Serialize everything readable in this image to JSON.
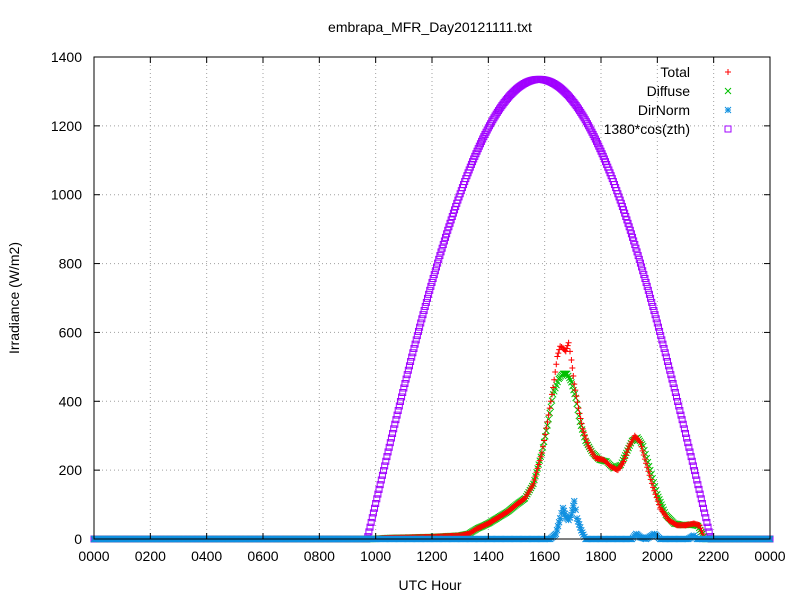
{
  "chart_data": {
    "type": "scatter",
    "title": "embrapa_MFR_Day20121111.txt",
    "xlabel": "UTC Hour",
    "ylabel": "Irradiance (W/m2)",
    "xlim": [
      0,
      24
    ],
    "ylim": [
      0,
      1400
    ],
    "x_ticks": [
      "0000",
      "0200",
      "0400",
      "0600",
      "0800",
      "1000",
      "1200",
      "1400",
      "1600",
      "1800",
      "2000",
      "2200",
      "0000"
    ],
    "y_ticks": [
      "0",
      "200",
      "400",
      "600",
      "800",
      "1000",
      "1200",
      "1400"
    ],
    "grid": true,
    "legend_position": "top-right",
    "series": [
      {
        "name": "Total",
        "marker": "plus",
        "color": "#ff0000",
        "points": [
          [
            0,
            0
          ],
          [
            9.7,
            0
          ],
          [
            9.9,
            0
          ],
          [
            10.4,
            3
          ],
          [
            11,
            4
          ],
          [
            11.5,
            5
          ],
          [
            12,
            6
          ],
          [
            12.5,
            8
          ],
          [
            13,
            10
          ],
          [
            13.3,
            15
          ],
          [
            13.6,
            30
          ],
          [
            14,
            45
          ],
          [
            14.3,
            60
          ],
          [
            14.7,
            80
          ],
          [
            15,
            100
          ],
          [
            15.3,
            118
          ],
          [
            15.6,
            160
          ],
          [
            15.9,
            250
          ],
          [
            16.1,
            340
          ],
          [
            16.3,
            440
          ],
          [
            16.45,
            530
          ],
          [
            16.55,
            560
          ],
          [
            16.65,
            555
          ],
          [
            16.75,
            545
          ],
          [
            16.85,
            570
          ],
          [
            16.95,
            520
          ],
          [
            17.05,
            450
          ],
          [
            17.2,
            380
          ],
          [
            17.35,
            320
          ],
          [
            17.55,
            270
          ],
          [
            17.8,
            235
          ],
          [
            18.1,
            230
          ],
          [
            18.35,
            210
          ],
          [
            18.6,
            200
          ],
          [
            18.8,
            225
          ],
          [
            19,
            270
          ],
          [
            19.2,
            300
          ],
          [
            19.4,
            280
          ],
          [
            19.6,
            220
          ],
          [
            19.85,
            150
          ],
          [
            20.1,
            90
          ],
          [
            20.4,
            55
          ],
          [
            20.7,
            40
          ],
          [
            21,
            40
          ],
          [
            21.3,
            45
          ],
          [
            21.5,
            40
          ],
          [
            21.6,
            15
          ],
          [
            21.7,
            0
          ],
          [
            24,
            0
          ]
        ]
      },
      {
        "name": "Diffuse",
        "marker": "cross",
        "color": "#00c000",
        "points": [
          [
            0,
            0
          ],
          [
            9.7,
            0
          ],
          [
            9.9,
            0
          ],
          [
            10.4,
            3
          ],
          [
            11,
            4
          ],
          [
            11.5,
            5
          ],
          [
            12,
            6
          ],
          [
            12.5,
            8
          ],
          [
            13,
            10
          ],
          [
            13.3,
            15
          ],
          [
            13.6,
            30
          ],
          [
            14,
            45
          ],
          [
            14.3,
            60
          ],
          [
            14.7,
            80
          ],
          [
            15,
            100
          ],
          [
            15.3,
            118
          ],
          [
            15.6,
            160
          ],
          [
            15.9,
            250
          ],
          [
            16.1,
            330
          ],
          [
            16.3,
            420
          ],
          [
            16.5,
            465
          ],
          [
            16.65,
            480
          ],
          [
            16.8,
            480
          ],
          [
            16.95,
            455
          ],
          [
            17.1,
            410
          ],
          [
            17.25,
            340
          ],
          [
            17.45,
            285
          ],
          [
            17.7,
            250
          ],
          [
            17.95,
            230
          ],
          [
            18.2,
            225
          ],
          [
            18.45,
            205
          ],
          [
            18.7,
            215
          ],
          [
            18.9,
            250
          ],
          [
            19.1,
            285
          ],
          [
            19.3,
            295
          ],
          [
            19.5,
            270
          ],
          [
            19.75,
            200
          ],
          [
            20,
            130
          ],
          [
            20.3,
            70
          ],
          [
            20.6,
            45
          ],
          [
            20.9,
            40
          ],
          [
            21.2,
            42
          ],
          [
            21.45,
            38
          ],
          [
            21.6,
            15
          ],
          [
            21.7,
            0
          ],
          [
            24,
            0
          ]
        ]
      },
      {
        "name": "DirNorm",
        "marker": "star",
        "color": "#1090e0",
        "points": [
          [
            0,
            0
          ],
          [
            16.2,
            0
          ],
          [
            16.4,
            15
          ],
          [
            16.55,
            60
          ],
          [
            16.65,
            90
          ],
          [
            16.75,
            65
          ],
          [
            16.85,
            55
          ],
          [
            16.95,
            70
          ],
          [
            17.05,
            110
          ],
          [
            17.15,
            60
          ],
          [
            17.3,
            25
          ],
          [
            17.45,
            0
          ],
          [
            19.1,
            0
          ],
          [
            19.25,
            15
          ],
          [
            19.4,
            5
          ],
          [
            19.6,
            0
          ],
          [
            19.9,
            15
          ],
          [
            20.1,
            0
          ],
          [
            21.1,
            0
          ],
          [
            21.3,
            10
          ],
          [
            21.4,
            0
          ],
          [
            24,
            0
          ]
        ]
      },
      {
        "name": "1380*cos(zth)",
        "marker": "square",
        "color": "#a000ff",
        "curve": {
          "peak_x": 15.8,
          "peak_y": 1335,
          "start_x": 9.7,
          "end_x": 21.9,
          "step": 0.04
        }
      }
    ]
  }
}
